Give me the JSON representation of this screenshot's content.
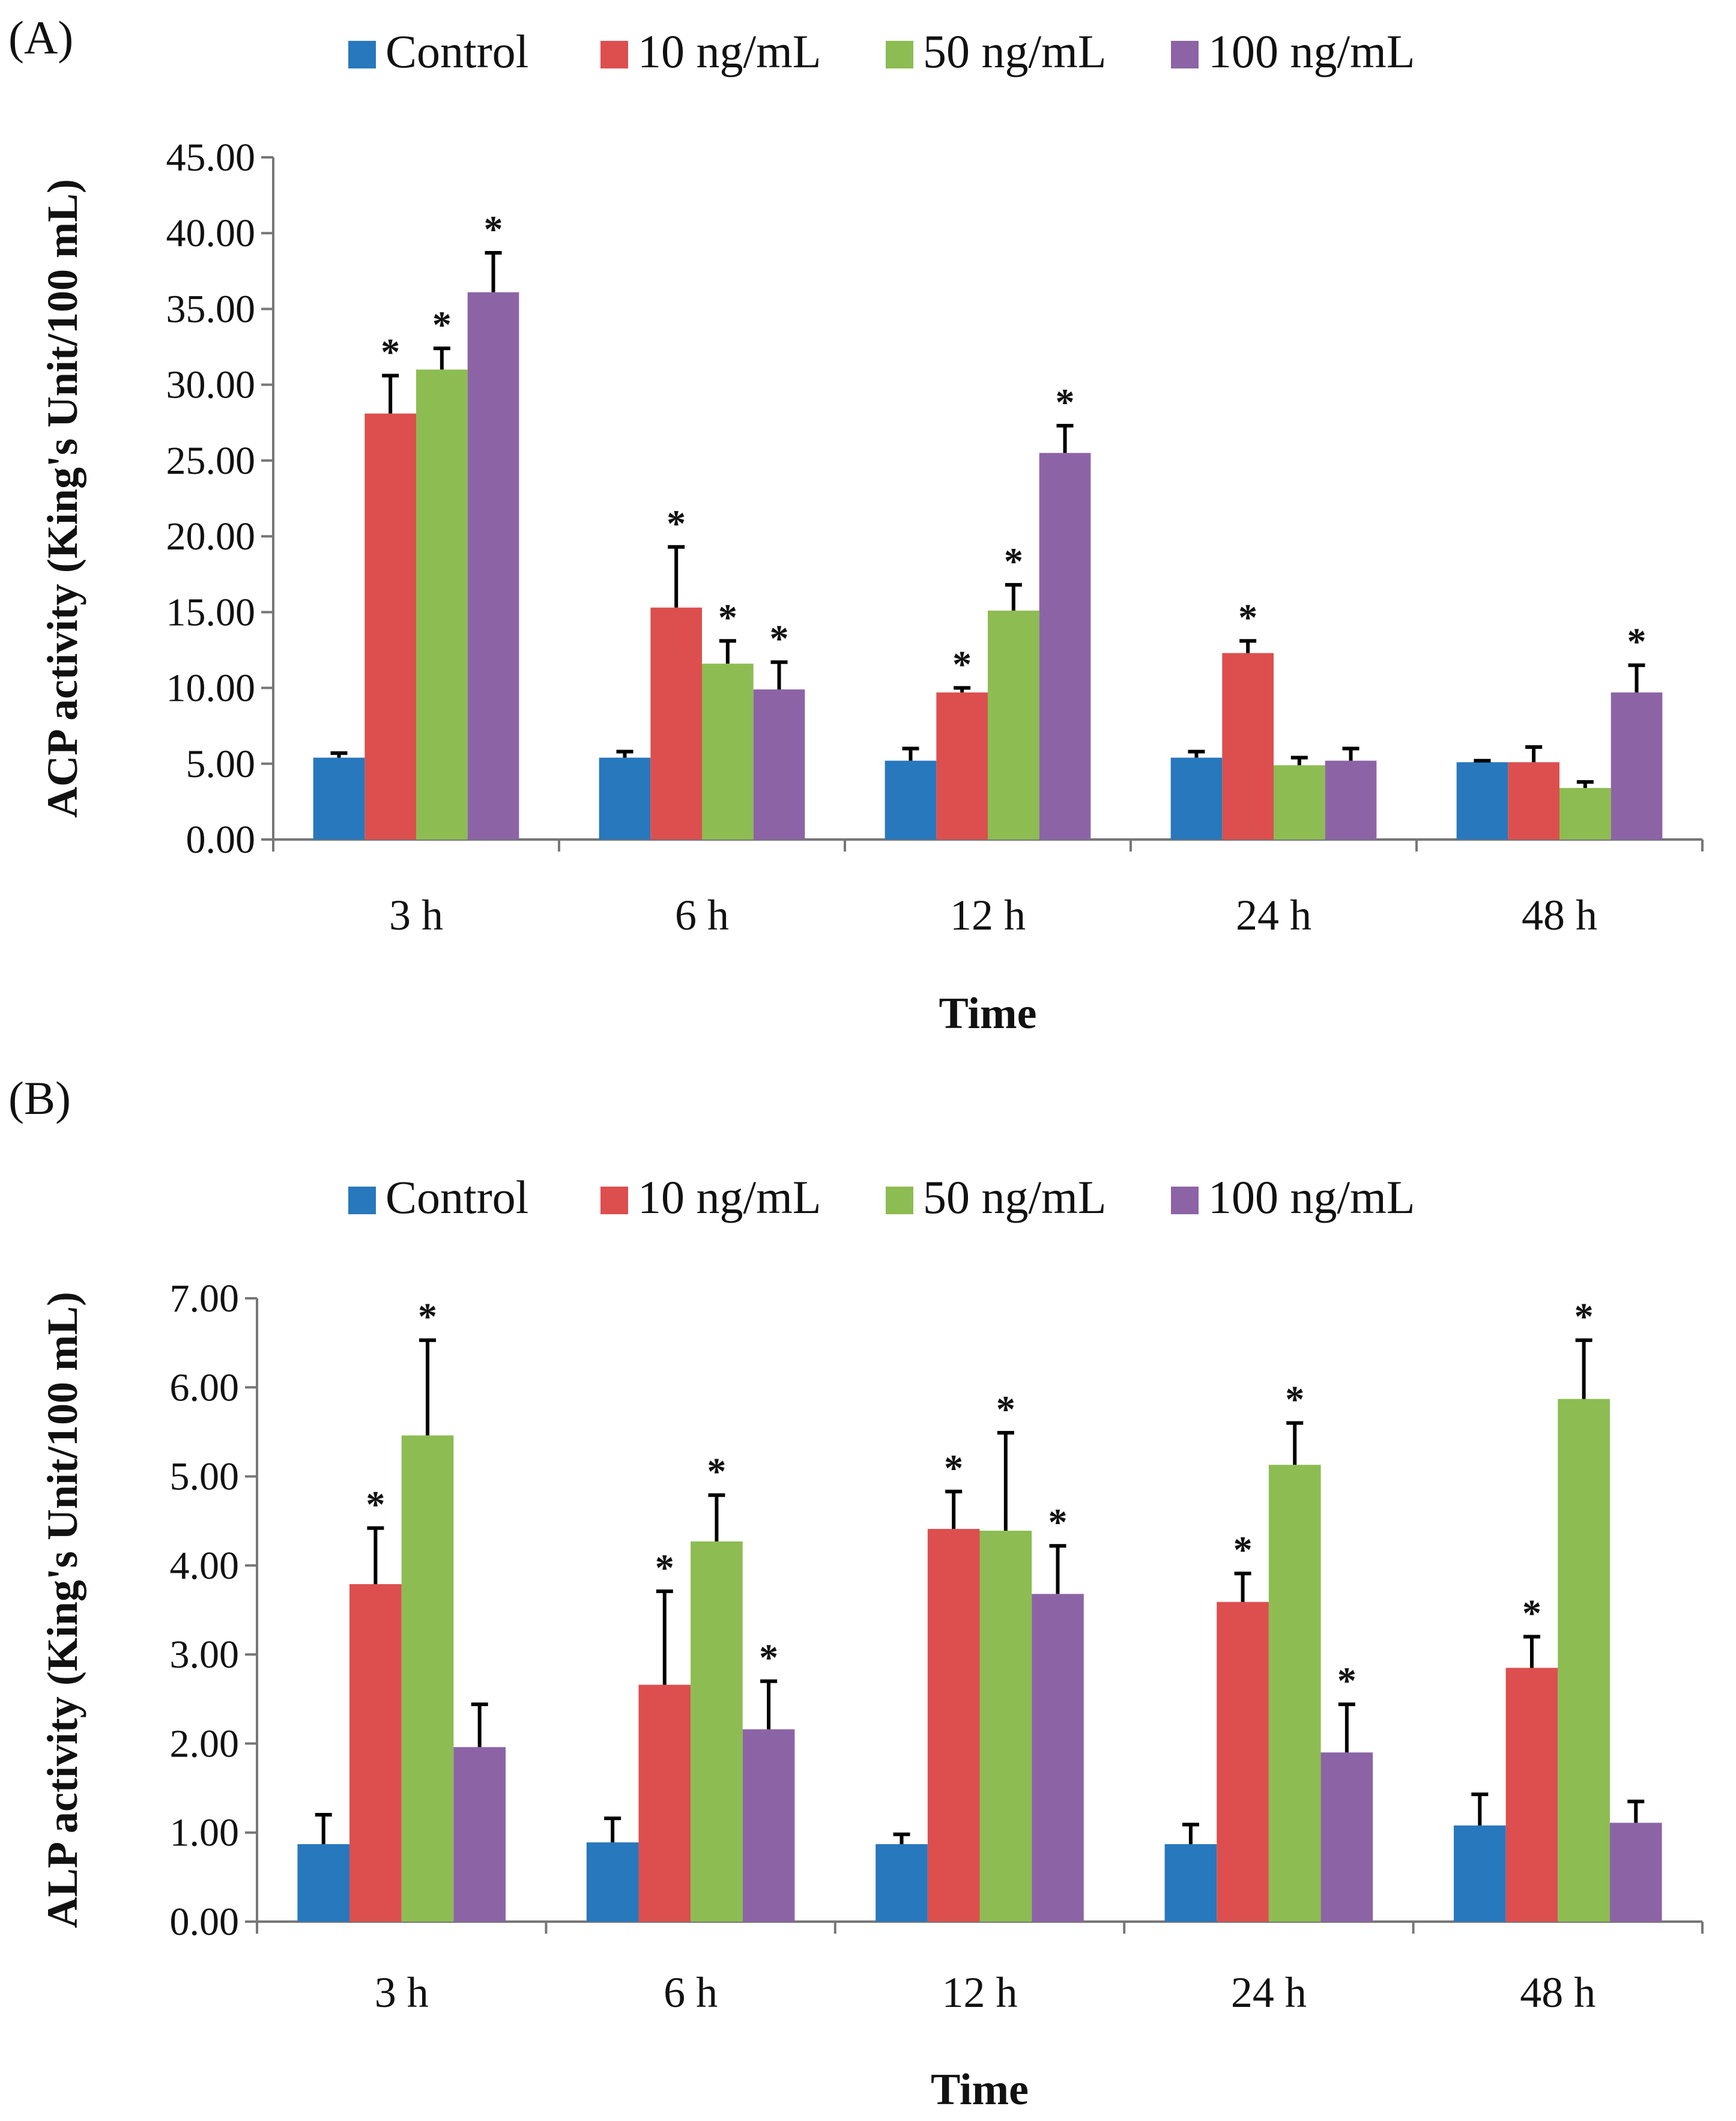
{
  "chart_data": [
    {
      "panel_label": "(A)",
      "type": "bar",
      "title": "",
      "xlabel": "Time",
      "ylabel": "ACP activity (King's Unit/100 mL)",
      "ylim": [
        0,
        45
      ],
      "yticks": [
        "0.00",
        "5.00",
        "10.00",
        "15.00",
        "20.00",
        "25.00",
        "30.00",
        "35.00",
        "40.00",
        "45.00"
      ],
      "categories": [
        "3 h",
        "6 h",
        "12 h",
        "24 h",
        "48 h"
      ],
      "legend_position": "top",
      "series": [
        {
          "name": "Control",
          "color": "#2878bd",
          "values": [
            5.4,
            5.4,
            5.2,
            5.4,
            5.1
          ],
          "errors": [
            0.3,
            0.4,
            0.8,
            0.4,
            0.1
          ],
          "significant": [
            false,
            false,
            false,
            false,
            false
          ]
        },
        {
          "name": "10 ng/mL",
          "color": "#dc4f4e",
          "values": [
            28.1,
            15.3,
            9.7,
            12.3,
            5.1
          ],
          "errors": [
            2.5,
            4.0,
            0.3,
            0.8,
            1.0
          ],
          "significant": [
            true,
            true,
            true,
            true,
            false
          ]
        },
        {
          "name": "50 ng/mL",
          "color": "#8dbc52",
          "values": [
            31.0,
            11.6,
            15.1,
            4.9,
            3.4
          ],
          "errors": [
            1.4,
            1.5,
            1.7,
            0.5,
            0.4
          ],
          "significant": [
            true,
            true,
            true,
            false,
            false
          ]
        },
        {
          "name": "100 ng/mL",
          "color": "#8c64a6",
          "values": [
            36.1,
            9.9,
            25.5,
            5.2,
            9.7
          ],
          "errors": [
            2.6,
            1.8,
            1.8,
            0.8,
            1.8
          ],
          "significant": [
            true,
            true,
            true,
            false,
            true
          ]
        }
      ],
      "significance_marker": "*"
    },
    {
      "panel_label": "(B)",
      "type": "bar",
      "title": "",
      "xlabel": "Time",
      "ylabel": "ALP activity (King's Unit/100 mL)",
      "ylim": [
        0,
        7
      ],
      "yticks": [
        "0.00",
        "1.00",
        "2.00",
        "3.00",
        "4.00",
        "5.00",
        "6.00",
        "7.00"
      ],
      "categories": [
        "3 h",
        "6 h",
        "12 h",
        "24 h",
        "48 h"
      ],
      "legend_position": "top",
      "series": [
        {
          "name": "Control",
          "color": "#2878bd",
          "values": [
            0.87,
            0.89,
            0.87,
            0.87,
            1.08
          ],
          "errors": [
            0.33,
            0.27,
            0.11,
            0.22,
            0.35
          ],
          "significant": [
            false,
            false,
            false,
            false,
            false
          ]
        },
        {
          "name": "10 ng/mL",
          "color": "#dc4f4e",
          "values": [
            3.79,
            2.66,
            4.41,
            3.59,
            2.85
          ],
          "errors": [
            0.63,
            1.05,
            0.42,
            0.32,
            0.35
          ],
          "significant": [
            true,
            true,
            true,
            true,
            true
          ]
        },
        {
          "name": "50 ng/mL",
          "color": "#8dbc52",
          "values": [
            5.46,
            4.27,
            4.39,
            5.13,
            5.87
          ],
          "errors": [
            1.07,
            0.52,
            1.1,
            0.47,
            0.66
          ],
          "significant": [
            true,
            true,
            true,
            true,
            true
          ]
        },
        {
          "name": "100 ng/mL",
          "color": "#8c64a6",
          "values": [
            1.96,
            2.16,
            3.68,
            1.9,
            1.11
          ],
          "errors": [
            0.48,
            0.54,
            0.54,
            0.54,
            0.24
          ],
          "significant": [
            false,
            true,
            true,
            true,
            false
          ]
        }
      ],
      "significance_marker": "*"
    }
  ]
}
